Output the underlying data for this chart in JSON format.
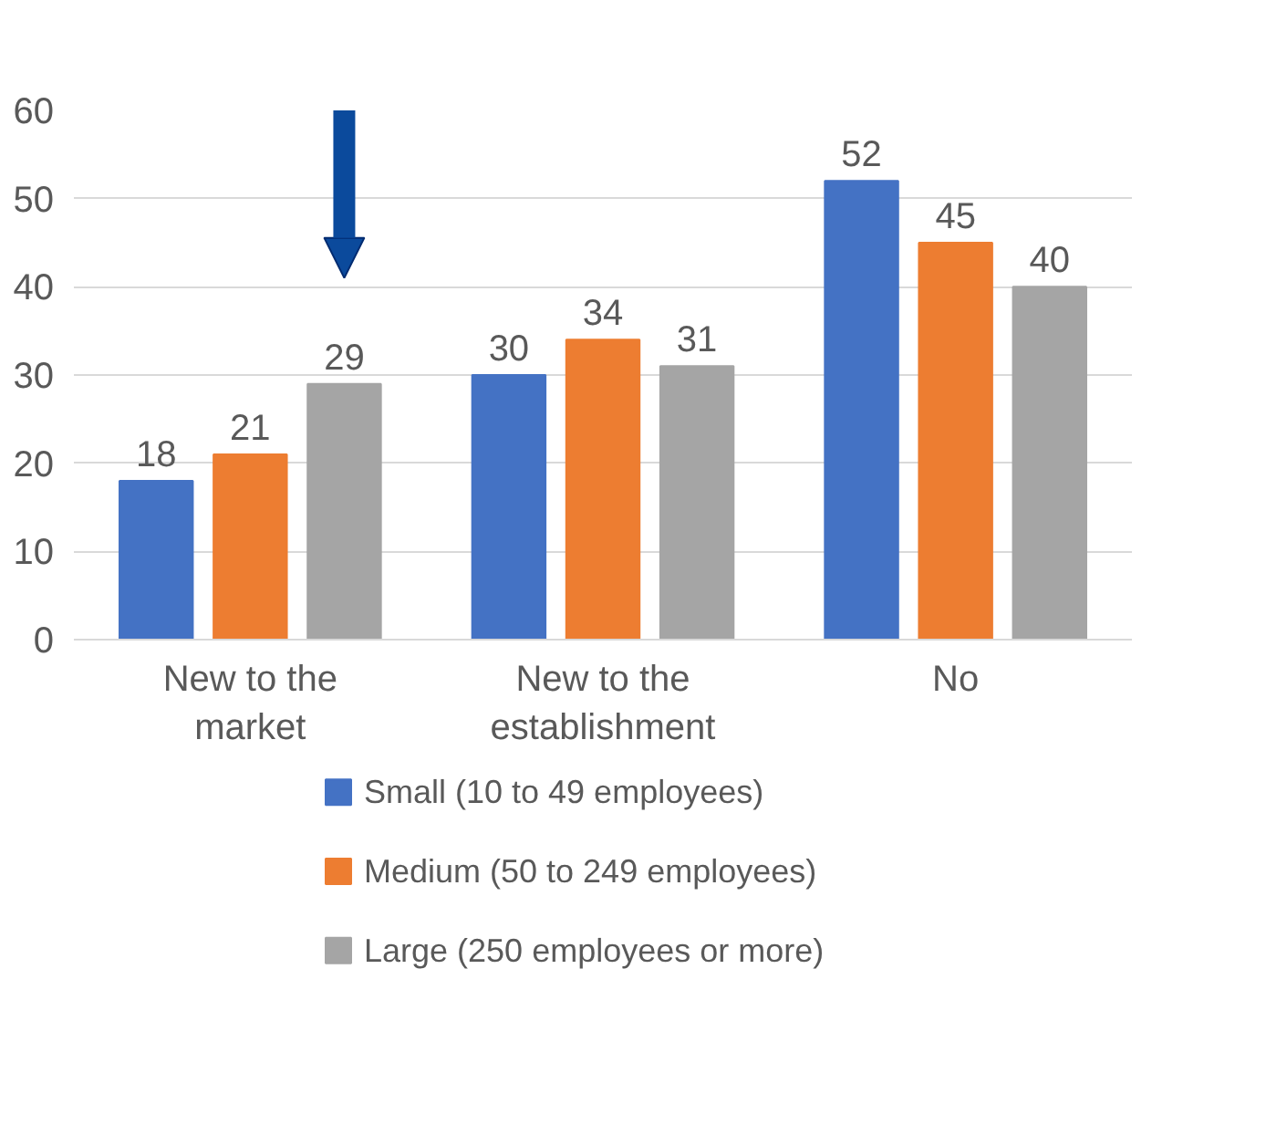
{
  "chart_data": {
    "type": "bar",
    "categories": [
      "New to the market",
      "New to the establishment",
      "No"
    ],
    "series": [
      {
        "name": "Small (10 to 49 employees)",
        "color": "#4472c4",
        "values": [
          18,
          30,
          52
        ]
      },
      {
        "name": "Medium (50 to 249 employees)",
        "color": "#ed7d31",
        "values": [
          21,
          34,
          45
        ]
      },
      {
        "name": "Large (250 employees or more)",
        "color": "#a5a5a5",
        "values": [
          29,
          31,
          40
        ]
      }
    ],
    "ylim": [
      0,
      60
    ],
    "yticks": [
      0,
      10,
      20,
      30,
      40,
      50,
      60
    ],
    "grid": "y",
    "legend": "bottom",
    "data_labels": true
  }
}
